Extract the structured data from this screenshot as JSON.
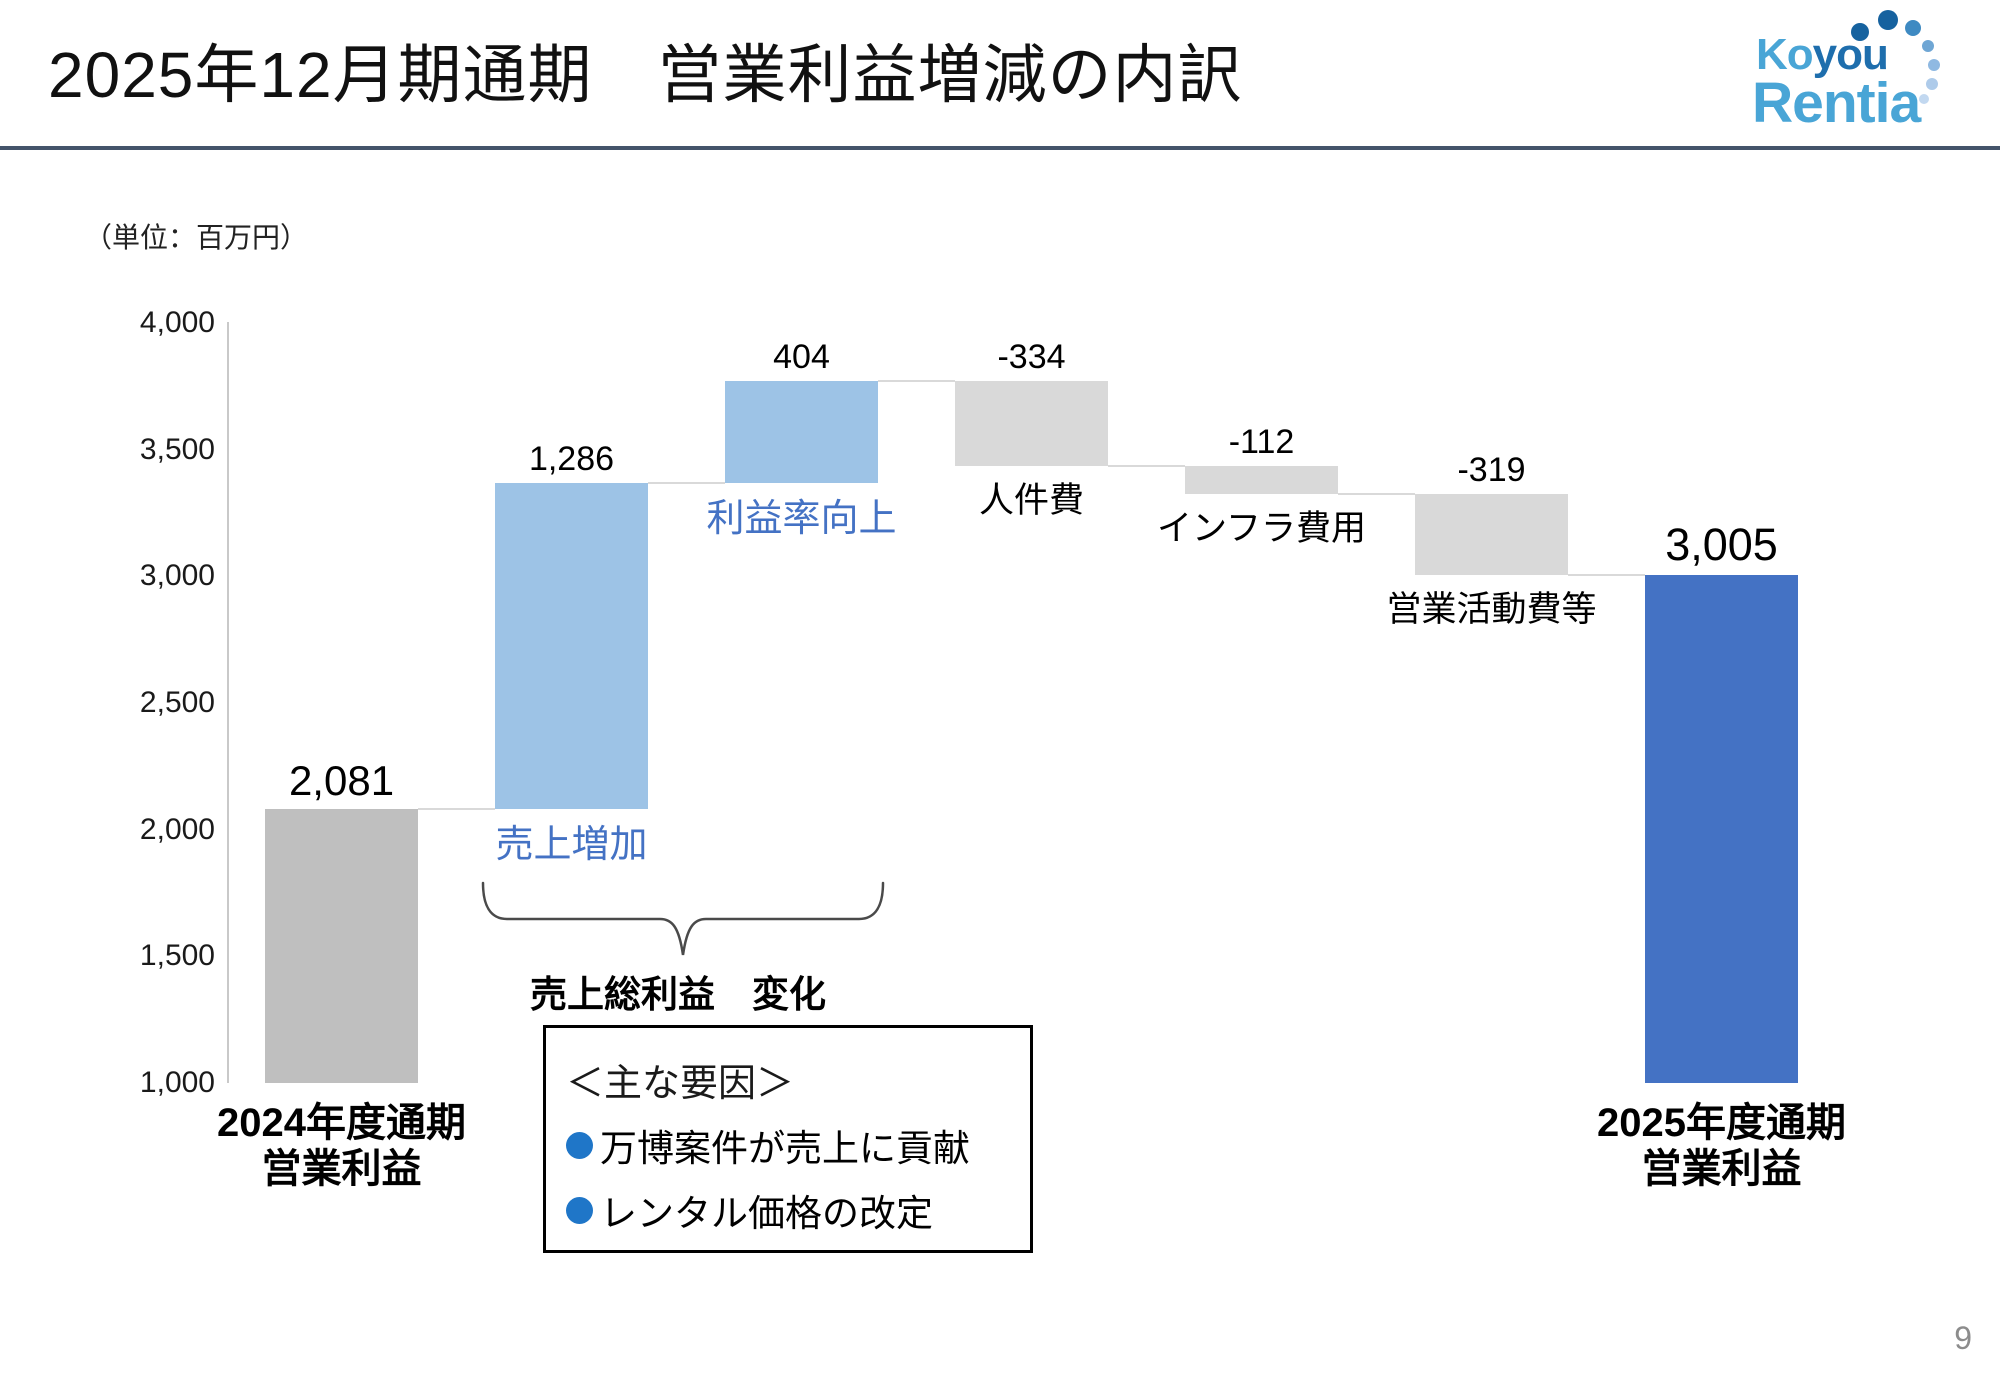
{
  "slide": {
    "title": "2025年12月期通期　営業利益増減の内訳",
    "unit_label": "（単位：百万円）",
    "page_number": "9"
  },
  "logo": {
    "word1_part1": "Ko",
    "word1_part2": "you",
    "word2": "Rentia",
    "color_light": "#49A5D6",
    "color_dark": "#1E6EAD",
    "arc_dot_colors": [
      "#16629F",
      "#16629F",
      "#3E8AC2",
      "#6FA6D4",
      "#8FB9E2",
      "#AECBEA",
      "#C2D8F0"
    ]
  },
  "chart_data": {
    "type": "bar",
    "subtype": "waterfall",
    "title": "営業利益増減の内訳",
    "ylabel": "百万円",
    "ylim": [
      1000,
      4000
    ],
    "ytick_step": 500,
    "yticks": [
      "4,000",
      "3,500",
      "3,000",
      "2,500",
      "2,000",
      "1,500",
      "1,000"
    ],
    "grid": false,
    "bars": [
      {
        "category": "2024年度通期 営業利益",
        "type": "start",
        "value": 2081,
        "label": "2,081",
        "axis_label_lines": [
          "2024年度通期",
          "営業利益"
        ]
      },
      {
        "category": "売上増加",
        "type": "increase",
        "value": 1286,
        "label": "1,286",
        "sublabel": "売上増加",
        "sublabel_style": "blue"
      },
      {
        "category": "利益率向上",
        "type": "increase",
        "value": 404,
        "label": "404",
        "sublabel": "利益率向上",
        "sublabel_style": "blue"
      },
      {
        "category": "人件費",
        "type": "decrease",
        "value": -334,
        "label": "-334",
        "sublabel": "人件費",
        "sublabel_style": "black"
      },
      {
        "category": "インフラ費用",
        "type": "decrease",
        "value": -112,
        "label": "-112",
        "sublabel": "インフラ費用",
        "sublabel_style": "black"
      },
      {
        "category": "営業活動費等",
        "type": "decrease",
        "value": -319,
        "label": "-319",
        "sublabel": "営業活動費等",
        "sublabel_style": "black"
      },
      {
        "category": "2025年度通期 営業利益",
        "type": "total",
        "value": 3005,
        "label": "3,005",
        "axis_label_lines": [
          "2025年度通期",
          "営業利益"
        ]
      }
    ],
    "colors": {
      "start": "#BFBFBF",
      "increase": "#9DC3E6",
      "decrease": "#D9D9D9",
      "total": "#4472C4",
      "sublabel_blue": "#4472C4",
      "sublabel_black": "#000000",
      "connector": "#D9D9D9"
    },
    "annotations": {
      "brace_label": "売上総利益　変化",
      "factors_box": {
        "heading": "＜主な要因＞",
        "items": [
          "万博案件が売上に貢献",
          "レンタル価格の改定"
        ],
        "bullet_color": "#1F76C8"
      }
    }
  }
}
